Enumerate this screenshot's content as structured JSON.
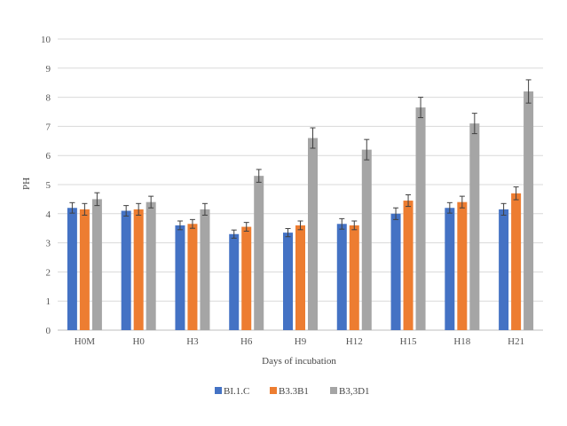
{
  "chart_data": {
    "type": "bar",
    "title": "",
    "xlabel": "Days of incubation",
    "ylabel": "PH",
    "ylim": [
      0,
      10
    ],
    "yticks": [
      0,
      1,
      2,
      3,
      4,
      5,
      6,
      7,
      8,
      9,
      10
    ],
    "grid": "horizontal",
    "legend_position": "bottom",
    "categories": [
      "H0M",
      "H0",
      "H3",
      "H6",
      "H9",
      "H12",
      "H15",
      "H18",
      "H21"
    ],
    "series": [
      {
        "name": "BI.1.C",
        "color": "#4472C4",
        "values": [
          4.2,
          4.1,
          3.6,
          3.3,
          3.35,
          3.65,
          4.0,
          4.2,
          4.15
        ],
        "errors": [
          0.18,
          0.18,
          0.15,
          0.14,
          0.14,
          0.18,
          0.2,
          0.18,
          0.2
        ]
      },
      {
        "name": "B3.3B1",
        "color": "#ED7D31",
        "values": [
          4.15,
          4.15,
          3.65,
          3.55,
          3.6,
          3.6,
          4.45,
          4.4,
          4.7
        ],
        "errors": [
          0.2,
          0.2,
          0.15,
          0.15,
          0.15,
          0.15,
          0.2,
          0.2,
          0.22
        ]
      },
      {
        "name": "B3,3D1",
        "color": "#A5A5A5",
        "values": [
          4.5,
          4.4,
          4.15,
          5.3,
          6.6,
          6.2,
          7.65,
          7.1,
          8.2
        ],
        "errors": [
          0.22,
          0.2,
          0.2,
          0.22,
          0.35,
          0.35,
          0.35,
          0.35,
          0.4
        ]
      }
    ]
  }
}
